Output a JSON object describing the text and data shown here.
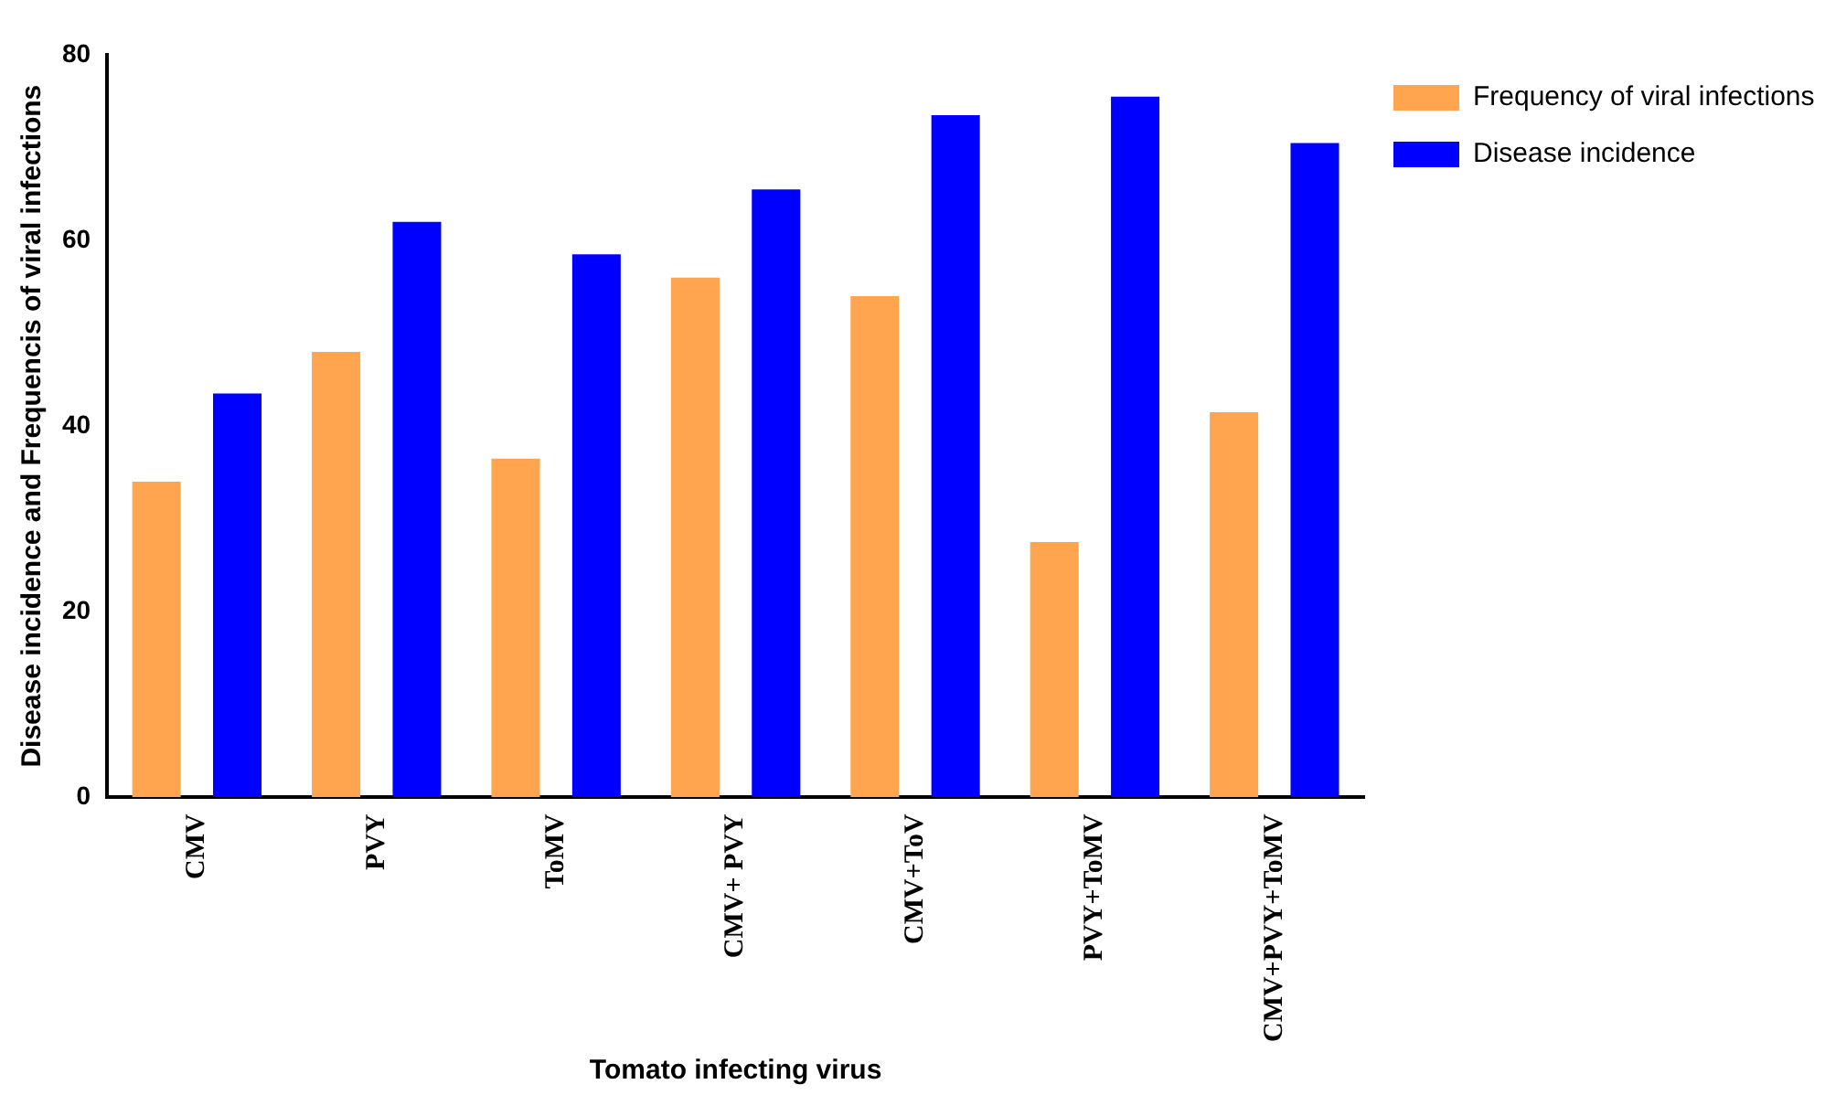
{
  "chart_data": {
    "type": "bar",
    "xlabel": "Tomato infecting virus",
    "ylabel": "Disease incidence and Frequencis of viral infections",
    "categories": [
      "CMV",
      "PVY",
      "ToMV",
      "CMV+ PVY",
      "CMV+ToV",
      "PVY+ToMV",
      "CMV+PVY+ToMV"
    ],
    "series": [
      {
        "name": "Frequency of viral infections",
        "color": "#ffa54f",
        "values": [
          34,
          48,
          36.5,
          56,
          54,
          27.5,
          41.5
        ]
      },
      {
        "name": "Disease incidence",
        "color": "#0000ff",
        "values": [
          43.5,
          62,
          58.5,
          65.5,
          73.5,
          75.5,
          70.5
        ]
      }
    ],
    "ylim": [
      0,
      80
    ],
    "yticks": [
      0,
      20,
      40,
      60,
      80
    ],
    "grid": false,
    "legend": "top right"
  }
}
